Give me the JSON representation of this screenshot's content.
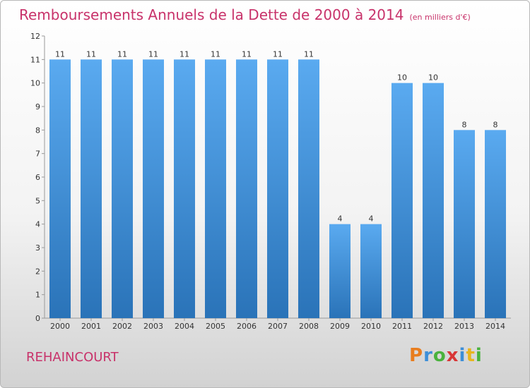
{
  "header": {
    "title": "Remboursements Annuels de la Dette de 2000 à 2014",
    "unit": "(en milliers d'€)"
  },
  "footer": {
    "town": "REHAINCOURT",
    "logo_letters": [
      "P",
      "r",
      "o",
      "x",
      "i",
      "t",
      "i"
    ],
    "logo_colors": [
      "#e87d1e",
      "#3d8fd8",
      "#49b23d",
      "#d83636",
      "#3d8fd8",
      "#e8b51e",
      "#49b23d"
    ]
  },
  "colors": {
    "bar_top": "#5aaaf0",
    "bar_bottom": "#2a73b8",
    "title": "#c8326a",
    "grid": "#cccccc"
  },
  "chart_data": {
    "type": "bar",
    "categories": [
      "2000",
      "2001",
      "2002",
      "2003",
      "2004",
      "2005",
      "2006",
      "2007",
      "2008",
      "2009",
      "2010",
      "2011",
      "2012",
      "2013",
      "2014"
    ],
    "values": [
      11,
      11,
      11,
      11,
      11,
      11,
      11,
      11,
      11,
      4,
      4,
      10,
      10,
      8,
      8
    ],
    "data_labels": [
      "11",
      "11",
      "11",
      "11",
      "11",
      "11",
      "11",
      "11",
      "11",
      "4",
      "4",
      "10",
      "10",
      "8",
      "8"
    ],
    "yticks": [
      0,
      1,
      2,
      3,
      4,
      5,
      6,
      7,
      8,
      9,
      10,
      11,
      12
    ],
    "ylim": [
      0,
      12
    ],
    "grid": false,
    "legend": "none"
  }
}
